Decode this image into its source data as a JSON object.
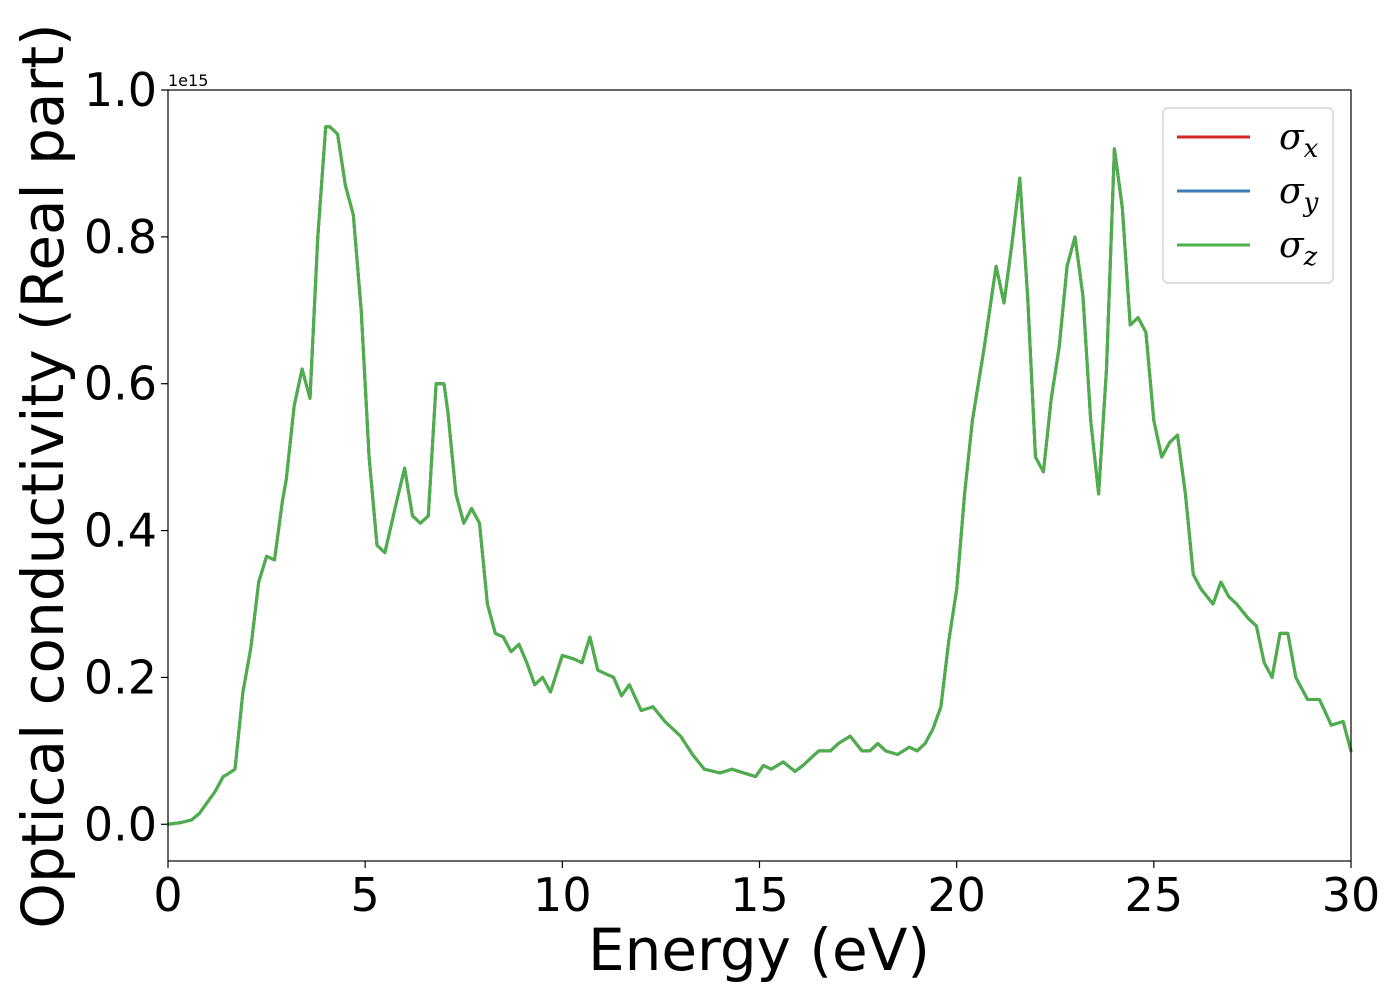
{
  "chart_data": {
    "type": "line",
    "xlabel": "Energy (eV)",
    "ylabel": "Optical conductivity (Real part)",
    "y_offset_text": "1e15",
    "xlim": [
      0,
      30
    ],
    "ylim": [
      -0.05,
      1.0
    ],
    "xticks": [
      0,
      5,
      10,
      15,
      20,
      25,
      30
    ],
    "xtick_labels": [
      "0",
      "5",
      "10",
      "15",
      "20",
      "25",
      "30"
    ],
    "yticks": [
      0.0,
      0.2,
      0.4,
      0.6,
      0.8,
      1.0
    ],
    "ytick_labels": [
      "0.0",
      "0.2",
      "0.4",
      "0.6",
      "0.8",
      "1.0"
    ],
    "grid": false,
    "legend_position": "top-right",
    "series": [
      {
        "name": "σx",
        "symbol": "σ",
        "subscript": "x",
        "color": "#d62728"
      },
      {
        "name": "σy",
        "symbol": "σ",
        "subscript": "y",
        "color": "#3a7db5"
      },
      {
        "name": "σz",
        "symbol": "σ",
        "subscript": "z",
        "color": "#4daf4a"
      }
    ],
    "x": [
      0,
      0.3,
      0.6,
      0.8,
      1.0,
      1.2,
      1.4,
      1.5,
      1.7,
      1.9,
      2.1,
      2.3,
      2.5,
      2.7,
      2.9,
      3.0,
      3.2,
      3.4,
      3.6,
      3.8,
      4.0,
      4.1,
      4.3,
      4.5,
      4.7,
      4.9,
      5.1,
      5.3,
      5.5,
      5.8,
      6.0,
      6.2,
      6.4,
      6.6,
      6.8,
      7.0,
      7.1,
      7.3,
      7.5,
      7.7,
      7.9,
      8.1,
      8.3,
      8.5,
      8.7,
      8.9,
      9.1,
      9.3,
      9.5,
      9.7,
      10.0,
      10.3,
      10.5,
      10.7,
      10.9,
      11.1,
      11.3,
      11.5,
      11.7,
      12.0,
      12.3,
      12.6,
      13.0,
      13.3,
      13.6,
      14.0,
      14.3,
      14.6,
      14.9,
      15.1,
      15.3,
      15.6,
      15.9,
      16.1,
      16.5,
      16.8,
      17.0,
      17.3,
      17.6,
      17.8,
      18.0,
      18.2,
      18.5,
      18.8,
      19.0,
      19.2,
      19.4,
      19.6,
      19.8,
      20.0,
      20.2,
      20.4,
      20.7,
      21.0,
      21.2,
      21.4,
      21.6,
      21.8,
      22.0,
      22.2,
      22.4,
      22.6,
      22.8,
      23.0,
      23.2,
      23.4,
      23.6,
      23.8,
      24.0,
      24.2,
      24.4,
      24.6,
      24.8,
      25.0,
      25.2,
      25.4,
      25.6,
      25.8,
      26.0,
      26.2,
      26.5,
      26.7,
      26.9,
      27.1,
      27.4,
      27.6,
      27.8,
      28.0,
      28.2,
      28.4,
      28.6,
      28.9,
      29.2,
      29.5,
      29.8,
      30.0
    ],
    "y": [
      0.0,
      0.002,
      0.006,
      0.015,
      0.03,
      0.045,
      0.065,
      0.068,
      0.075,
      0.18,
      0.24,
      0.33,
      0.365,
      0.36,
      0.44,
      0.47,
      0.57,
      0.62,
      0.58,
      0.8,
      0.95,
      0.95,
      0.94,
      0.87,
      0.83,
      0.7,
      0.5,
      0.38,
      0.37,
      0.44,
      0.485,
      0.42,
      0.41,
      0.42,
      0.6,
      0.6,
      0.56,
      0.45,
      0.41,
      0.43,
      0.41,
      0.3,
      0.26,
      0.255,
      0.235,
      0.245,
      0.22,
      0.19,
      0.2,
      0.18,
      0.23,
      0.225,
      0.22,
      0.255,
      0.21,
      0.205,
      0.2,
      0.175,
      0.19,
      0.155,
      0.16,
      0.14,
      0.12,
      0.095,
      0.075,
      0.07,
      0.075,
      0.07,
      0.065,
      0.08,
      0.075,
      0.085,
      0.072,
      0.08,
      0.1,
      0.1,
      0.11,
      0.12,
      0.1,
      0.1,
      0.11,
      0.1,
      0.095,
      0.105,
      0.1,
      0.11,
      0.13,
      0.16,
      0.25,
      0.32,
      0.45,
      0.55,
      0.65,
      0.76,
      0.71,
      0.79,
      0.88,
      0.72,
      0.5,
      0.48,
      0.58,
      0.65,
      0.76,
      0.8,
      0.72,
      0.55,
      0.45,
      0.62,
      0.92,
      0.84,
      0.68,
      0.69,
      0.67,
      0.55,
      0.5,
      0.52,
      0.53,
      0.45,
      0.34,
      0.32,
      0.3,
      0.33,
      0.31,
      0.3,
      0.28,
      0.27,
      0.22,
      0.2,
      0.26,
      0.26,
      0.2,
      0.17,
      0.17,
      0.135,
      0.14,
      0.1
    ]
  }
}
